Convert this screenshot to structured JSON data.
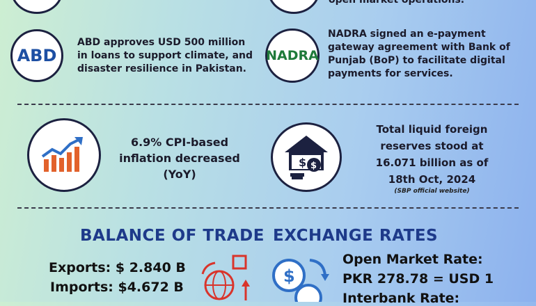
{
  "top": {
    "partial_text": "open market operations."
  },
  "news": [
    {
      "logo": "ABD",
      "text": "ABD approves USD 500 million in loans to support climate, and disaster resilience in Pakistan."
    },
    {
      "logo": "NADRA",
      "text": "NADRA signed an e-payment gateway agreement with Bank of Punjab (BoP) to facilitate digital payments for services."
    }
  ],
  "inflation": {
    "text": "6.9% CPI-based inflation decreased (YoY)"
  },
  "reserves": {
    "text": "Total liquid foreign reserves stood at 16.071 billion as of 18th Oct, 2024",
    "source": "(SBP official website)"
  },
  "trade": {
    "heading": "BALANCE OF TRADE",
    "exports": "Exports: $ 2.840 B",
    "imports": "Imports: $4.672 B"
  },
  "exchange": {
    "heading": "EXCHANGE RATES",
    "open_label": "Open Market Rate:",
    "open_value": "PKR 278.78 = USD 1",
    "interbank_label": "Interbank Rate:"
  },
  "colors": {
    "accent": "#1e3a8a",
    "logo_blue": "#1d4fa3",
    "logo_green": "#1f7a3a",
    "icon_orange": "#e2622c",
    "icon_red": "#d9342b",
    "icon_blue": "#2f6fc6"
  }
}
